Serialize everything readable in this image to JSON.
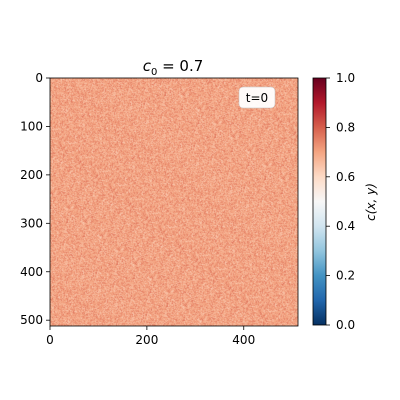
{
  "chart_data": {
    "type": "heatmap",
    "title_base": "c",
    "title_sub": "0",
    "title_rest": " = 0.7",
    "annotation": "t=0",
    "mean_value": 0.7,
    "noise_amplitude": 0.06,
    "grid_size": 512,
    "x_ticks": [
      {
        "value": 0,
        "label": "0"
      },
      {
        "value": 200,
        "label": "200"
      },
      {
        "value": 400,
        "label": "400"
      }
    ],
    "y_ticks": [
      {
        "value": 0,
        "label": "0"
      },
      {
        "value": 100,
        "label": "100"
      },
      {
        "value": 200,
        "label": "200"
      },
      {
        "value": 300,
        "label": "300"
      },
      {
        "value": 400,
        "label": "400"
      },
      {
        "value": 500,
        "label": "500"
      }
    ],
    "colorbar": {
      "label": "c(x, y)",
      "colormap": "RdBu_r",
      "vmin": 0.0,
      "vmax": 1.0,
      "ticks": [
        {
          "value": 0.0,
          "label": "0.0"
        },
        {
          "value": 0.2,
          "label": "0.2"
        },
        {
          "value": 0.4,
          "label": "0.4"
        },
        {
          "value": 0.6,
          "label": "0.6"
        },
        {
          "value": 0.8,
          "label": "0.8"
        },
        {
          "value": 1.0,
          "label": "1.0"
        }
      ]
    },
    "grid": false
  }
}
